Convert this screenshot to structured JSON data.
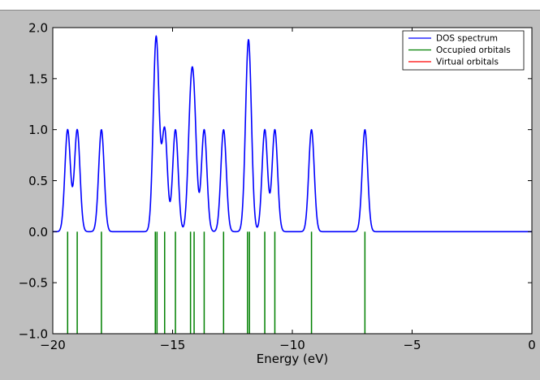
{
  "chart_data": {
    "type": "line",
    "title": "",
    "xlabel": "Energy (eV)",
    "ylabel": "",
    "xlim": [
      -20,
      0
    ],
    "ylim": [
      -1.0,
      2.0
    ],
    "xticks": [
      -20,
      -15,
      -10,
      -5,
      0
    ],
    "xtick_labels": [
      "−20",
      "−15",
      "−10",
      "−5",
      "0"
    ],
    "yticks": [
      2.0,
      1.5,
      1.0,
      0.5,
      0.0,
      -0.5,
      -1.0
    ],
    "ytick_labels": [
      "2.0",
      "1.5",
      "1.0",
      "0.5",
      "0.0",
      "−0.5",
      "−1.0"
    ],
    "grid": false,
    "legend_position": "top-right",
    "series": [
      {
        "name": "DOS spectrum",
        "color": "#0000ff",
        "kind": "gaussian-broadened"
      },
      {
        "name": "Occupied orbitals",
        "color": "#008000",
        "kind": "sticks",
        "values": [
          -19.38,
          -18.98,
          -17.97,
          -15.72,
          -15.65,
          -15.33,
          -14.88,
          -14.25,
          -14.1,
          -13.68,
          -12.87,
          -11.87,
          -11.79,
          -11.15,
          -10.73,
          -9.2,
          -6.97
        ]
      },
      {
        "name": "Virtual orbitals",
        "color": "#ff0000",
        "kind": "sticks",
        "values": []
      }
    ],
    "stick_range": [
      -1.0,
      0.0
    ]
  }
}
